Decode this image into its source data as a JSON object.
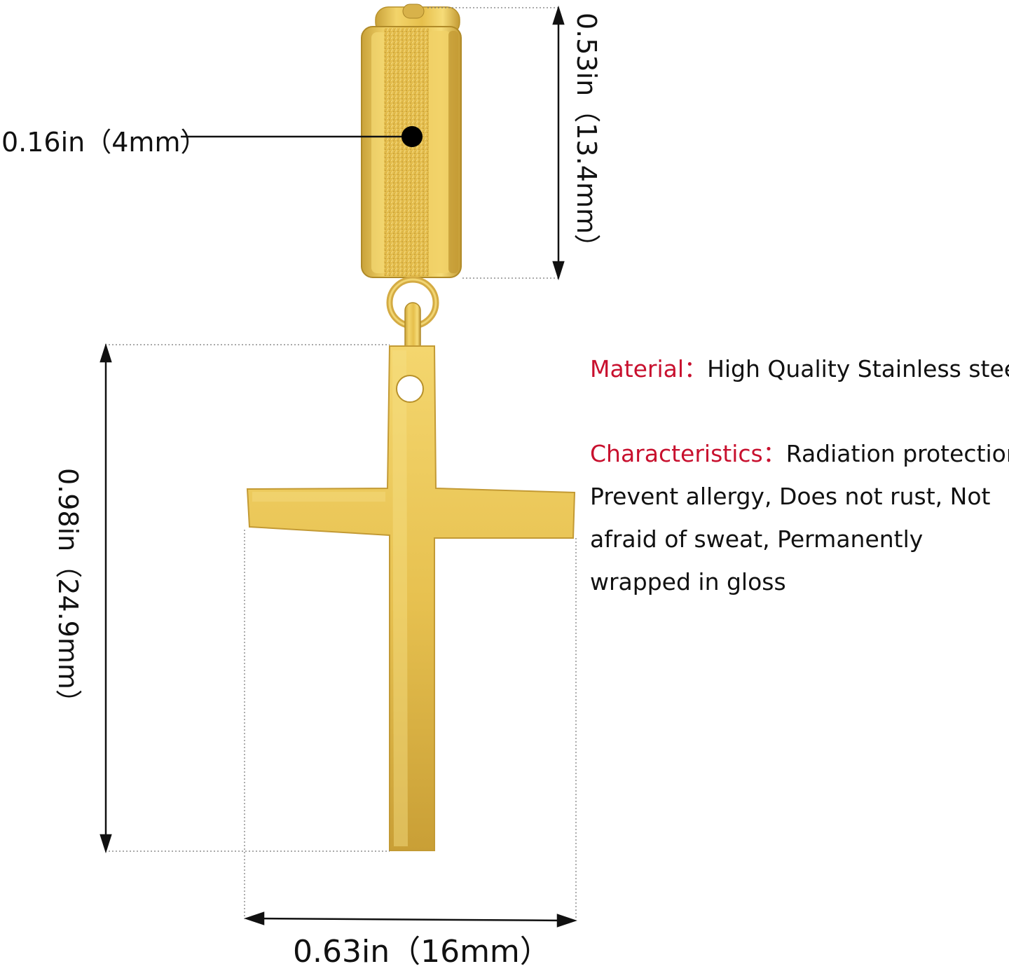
{
  "dimensions": {
    "band_width": "0.16in（4mm）",
    "hoop_height": "0.53in（13.4mm）",
    "cross_height": "0.98in（24.9mm）",
    "cross_width": "0.63in（16mm）"
  },
  "specs": {
    "material_key": "Material：",
    "material_value": "High Quality Stainless steel",
    "characteristics_key": "Characteristics：",
    "characteristics_line1": "Radiation protection,",
    "characteristics_line2": "Prevent allergy,   Does not rust,   Not",
    "characteristics_line3": "afraid of sweat,   Permanently",
    "characteristics_line4": "wrapped in gloss"
  },
  "colors": {
    "gold": "#e8c44f",
    "gold_dark": "#b8912a",
    "accent_red": "#c8102e"
  }
}
